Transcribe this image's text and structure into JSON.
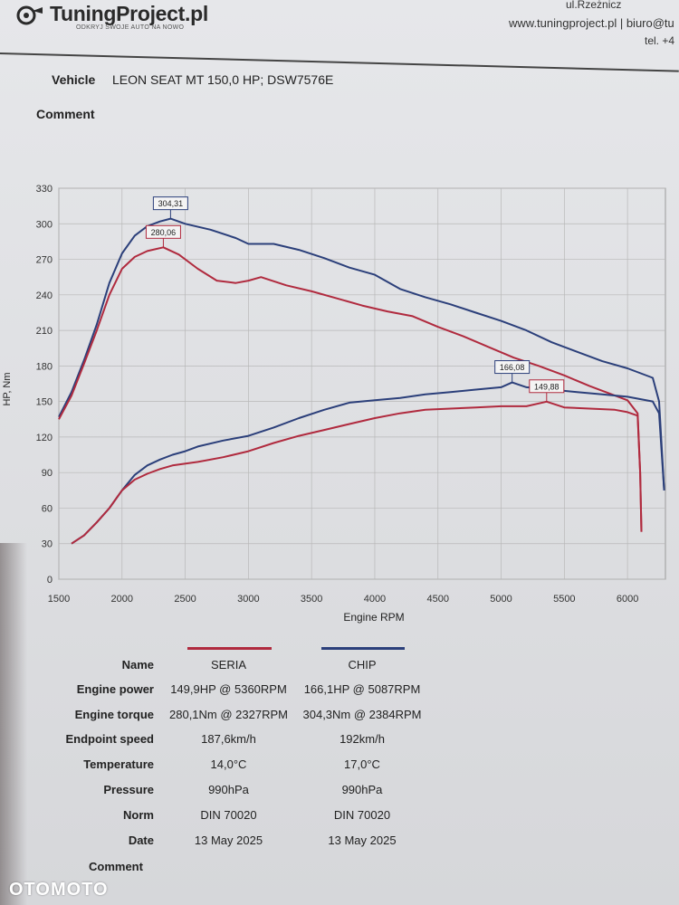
{
  "header": {
    "logo_text": "TuningProject.pl",
    "slogan": "ODKRYJ SWOJE AUTO NA NOWO",
    "address": "ul.Rzeżnicz",
    "web": "www.tuningproject.pl | biuro@tu",
    "tel": "tel. +4"
  },
  "vehicle": {
    "label": "Vehicle",
    "value": "LEON SEAT MT 150,0 HP; DSW7576E"
  },
  "comment_label": "Comment",
  "chart_data": {
    "type": "line",
    "xlabel": "Engine RPM",
    "ylabel": "HP, Nm",
    "xlim": [
      1500,
      6300
    ],
    "ylim": [
      0,
      330
    ],
    "x_ticks": [
      1500,
      2000,
      2500,
      3000,
      3500,
      4000,
      4500,
      5000,
      5500,
      6000
    ],
    "y_ticks": [
      0,
      30,
      60,
      90,
      120,
      150,
      180,
      210,
      240,
      270,
      300,
      330
    ],
    "grid": true,
    "series": [
      {
        "name": "CHIP",
        "kind": "torque",
        "color": "#2b3f7a",
        "points": [
          [
            1500,
            137
          ],
          [
            1600,
            158
          ],
          [
            1700,
            185
          ],
          [
            1800,
            215
          ],
          [
            1900,
            250
          ],
          [
            2000,
            275
          ],
          [
            2100,
            290
          ],
          [
            2200,
            298
          ],
          [
            2300,
            302
          ],
          [
            2384,
            304.3
          ],
          [
            2500,
            300
          ],
          [
            2700,
            295
          ],
          [
            2900,
            288
          ],
          [
            3000,
            283
          ],
          [
            3200,
            283
          ],
          [
            3400,
            278
          ],
          [
            3600,
            271
          ],
          [
            3800,
            263
          ],
          [
            4000,
            257
          ],
          [
            4200,
            245
          ],
          [
            4400,
            238
          ],
          [
            4600,
            232
          ],
          [
            4800,
            225
          ],
          [
            5000,
            218
          ],
          [
            5200,
            210
          ],
          [
            5400,
            200
          ],
          [
            5600,
            192
          ],
          [
            5800,
            184
          ],
          [
            6000,
            178
          ],
          [
            6200,
            170
          ],
          [
            6250,
            150
          ],
          [
            6290,
            75
          ]
        ]
      },
      {
        "name": "SERIA",
        "kind": "torque",
        "color": "#b02a3e",
        "points": [
          [
            1500,
            135
          ],
          [
            1600,
            155
          ],
          [
            1700,
            182
          ],
          [
            1800,
            210
          ],
          [
            1900,
            240
          ],
          [
            2000,
            262
          ],
          [
            2100,
            272
          ],
          [
            2200,
            277
          ],
          [
            2327,
            280.1
          ],
          [
            2450,
            274
          ],
          [
            2600,
            262
          ],
          [
            2750,
            252
          ],
          [
            2900,
            250
          ],
          [
            3000,
            252
          ],
          [
            3100,
            255
          ],
          [
            3300,
            248
          ],
          [
            3500,
            243
          ],
          [
            3700,
            237
          ],
          [
            3900,
            231
          ],
          [
            4100,
            226
          ],
          [
            4300,
            222
          ],
          [
            4500,
            213
          ],
          [
            4700,
            205
          ],
          [
            4900,
            196
          ],
          [
            5100,
            187
          ],
          [
            5300,
            180
          ],
          [
            5500,
            172
          ],
          [
            5700,
            163
          ],
          [
            5900,
            155
          ],
          [
            6000,
            151
          ],
          [
            6080,
            140
          ],
          [
            6100,
            90
          ],
          [
            6110,
            40
          ]
        ]
      },
      {
        "name": "CHIP",
        "kind": "power",
        "color": "#2b3f7a",
        "points": [
          [
            1600,
            30
          ],
          [
            1700,
            37
          ],
          [
            1800,
            48
          ],
          [
            1900,
            60
          ],
          [
            2000,
            75
          ],
          [
            2100,
            88
          ],
          [
            2200,
            96
          ],
          [
            2300,
            101
          ],
          [
            2400,
            105
          ],
          [
            2500,
            108
          ],
          [
            2600,
            112
          ],
          [
            2800,
            117
          ],
          [
            3000,
            121
          ],
          [
            3200,
            128
          ],
          [
            3400,
            136
          ],
          [
            3600,
            143
          ],
          [
            3800,
            149
          ],
          [
            4000,
            151
          ],
          [
            4200,
            153
          ],
          [
            4400,
            156
          ],
          [
            4600,
            158
          ],
          [
            4800,
            160
          ],
          [
            5000,
            162
          ],
          [
            5087,
            166.1
          ],
          [
            5200,
            162
          ],
          [
            5400,
            160
          ],
          [
            5600,
            158
          ],
          [
            5800,
            156
          ],
          [
            6000,
            154
          ],
          [
            6200,
            150
          ],
          [
            6250,
            140
          ],
          [
            6290,
            75
          ]
        ]
      },
      {
        "name": "SERIA",
        "kind": "power",
        "color": "#b02a3e",
        "points": [
          [
            1600,
            30
          ],
          [
            1700,
            37
          ],
          [
            1800,
            48
          ],
          [
            1900,
            60
          ],
          [
            2000,
            75
          ],
          [
            2100,
            84
          ],
          [
            2200,
            89
          ],
          [
            2300,
            93
          ],
          [
            2400,
            96
          ],
          [
            2600,
            99
          ],
          [
            2800,
            103
          ],
          [
            3000,
            108
          ],
          [
            3200,
            115
          ],
          [
            3400,
            121
          ],
          [
            3600,
            126
          ],
          [
            3800,
            131
          ],
          [
            4000,
            136
          ],
          [
            4200,
            140
          ],
          [
            4400,
            143
          ],
          [
            4600,
            144
          ],
          [
            4800,
            145
          ],
          [
            5000,
            146
          ],
          [
            5200,
            146
          ],
          [
            5360,
            149.9
          ],
          [
            5500,
            145
          ],
          [
            5700,
            144
          ],
          [
            5900,
            143
          ],
          [
            6000,
            141
          ],
          [
            6080,
            138
          ],
          [
            6100,
            90
          ],
          [
            6110,
            40
          ]
        ]
      }
    ],
    "annotations": [
      {
        "text": "304,31",
        "x": 2384,
        "y": 304.3,
        "color": "#2b3f7a"
      },
      {
        "text": "280,06",
        "x": 2327,
        "y": 280.1,
        "color": "#b02a3e"
      },
      {
        "text": "166,08",
        "x": 5087,
        "y": 166.1,
        "color": "#2b3f7a"
      },
      {
        "text": "149,88",
        "x": 5360,
        "y": 149.9,
        "color": "#b02a3e"
      }
    ]
  },
  "info": {
    "name_label": "Name",
    "col1": "SERIA",
    "col2": "CHIP",
    "col1_color": "#b02a3e",
    "col2_color": "#2b3f7a",
    "rows": [
      {
        "label": "Engine power",
        "v1": "149,9HP @ 5360RPM",
        "v2": "166,1HP @ 5087RPM"
      },
      {
        "label": "Engine torque",
        "v1": "280,1Nm @ 2327RPM",
        "v2": "304,3Nm @ 2384RPM"
      },
      {
        "label": "Endpoint speed",
        "v1": "187,6km/h",
        "v2": "192km/h"
      },
      {
        "label": "Temperature",
        "v1": "14,0°C",
        "v2": "17,0°C"
      },
      {
        "label": "Pressure",
        "v1": "990hPa",
        "v2": "990hPa"
      },
      {
        "label": "Norm",
        "v1": "DIN 70020",
        "v2": "DIN 70020"
      },
      {
        "label": "Date",
        "v1": "13 May 2025",
        "v2": "13 May 2025"
      }
    ]
  },
  "comment_bottom": "Comment",
  "watermark": "OTOMOTO"
}
